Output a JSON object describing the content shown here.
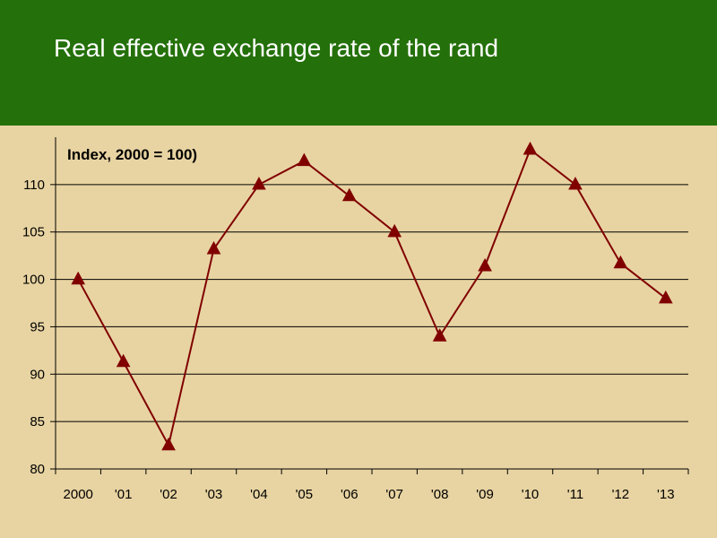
{
  "slide": {
    "title": "Real effective exchange rate of the rand"
  },
  "colors": {
    "header_bg": "#24700a",
    "plot_bg": "#e8d4a2",
    "series": "#800000",
    "grid": "#000000"
  },
  "chart_data": {
    "type": "line",
    "title": "Real effective exchange rate of the rand",
    "ylabel": "Index, 2000 = 100)",
    "xlabel": "",
    "categories": [
      "2000",
      "'01",
      "'02",
      "'03",
      "'04",
      "'05",
      "'06",
      "'07",
      "'08",
      "'09",
      "'10",
      "'11",
      "'12",
      "'13"
    ],
    "series": [
      {
        "marker": "triangle",
        "color": "#800000",
        "values": [
          100,
          91.3,
          82.5,
          103.2,
          110,
          112.5,
          108.8,
          105,
          94,
          101.4,
          113.7,
          110,
          101.7,
          98
        ]
      }
    ],
    "yticks": [
      80,
      85,
      90,
      95,
      100,
      105,
      110
    ],
    "ylim": [
      80,
      115
    ],
    "grid": true,
    "legend": "none"
  }
}
